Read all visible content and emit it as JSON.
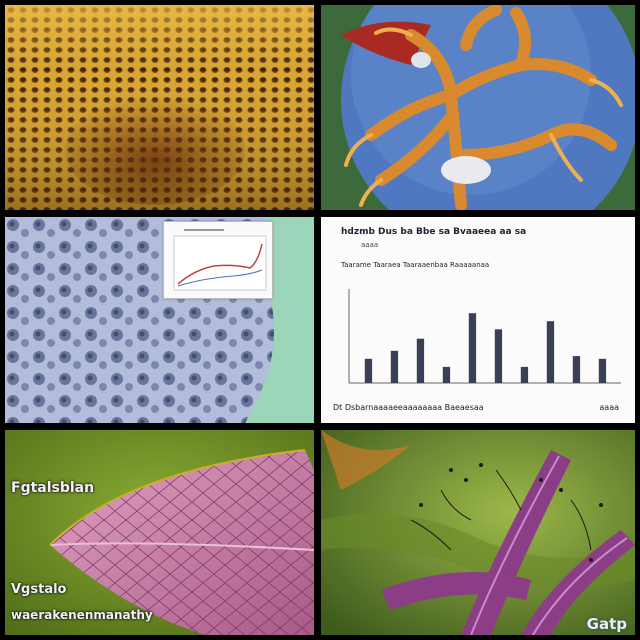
{
  "panels": [
    {
      "name": "honeycomb-texture"
    },
    {
      "name": "orange-branching-structure"
    },
    {
      "name": "blue-tissue-with-inset-graph"
    },
    {
      "name": "bar-chart-figure"
    },
    {
      "name": "pink-leaf-illustration"
    },
    {
      "name": "purple-plant-with-annotations"
    }
  ],
  "overlay_text": {
    "label_1": "Fgtalsblan",
    "label_2": "Vgstalo",
    "label_3": "waerakenenmanathy"
  },
  "watermark": "Gatp",
  "chart_panel": {
    "header": "hdzmb   Dus ba Bbe sa Bvaaeea aa sa",
    "header_2": "aaaa",
    "subtitle": "Taarame Taaraea Taaraaenbaa Raaaaanaa",
    "footer": "Dt Dsbarnaaaaeeaaaaaaaa Baeaesaa",
    "footer_right": "aaaa"
  },
  "colors": {
    "honeycomb": "#c99426",
    "blue_bg": "#5a7ec0",
    "branch": "#d88a32",
    "tissue": "#8c9ccc",
    "mint": "#8fd0b0",
    "pink_leaf": "#c876a2",
    "olive_bg": "#7a9a2c",
    "purple": "#8b3d86"
  },
  "chart_data": {
    "type": "bar",
    "categories": [
      "",
      "",
      "",
      "",
      "",
      "",
      "",
      "",
      "",
      ""
    ],
    "values": [
      18,
      24,
      33,
      12,
      52,
      40,
      12,
      46,
      20,
      18
    ],
    "ylim": [
      0,
      70
    ]
  }
}
